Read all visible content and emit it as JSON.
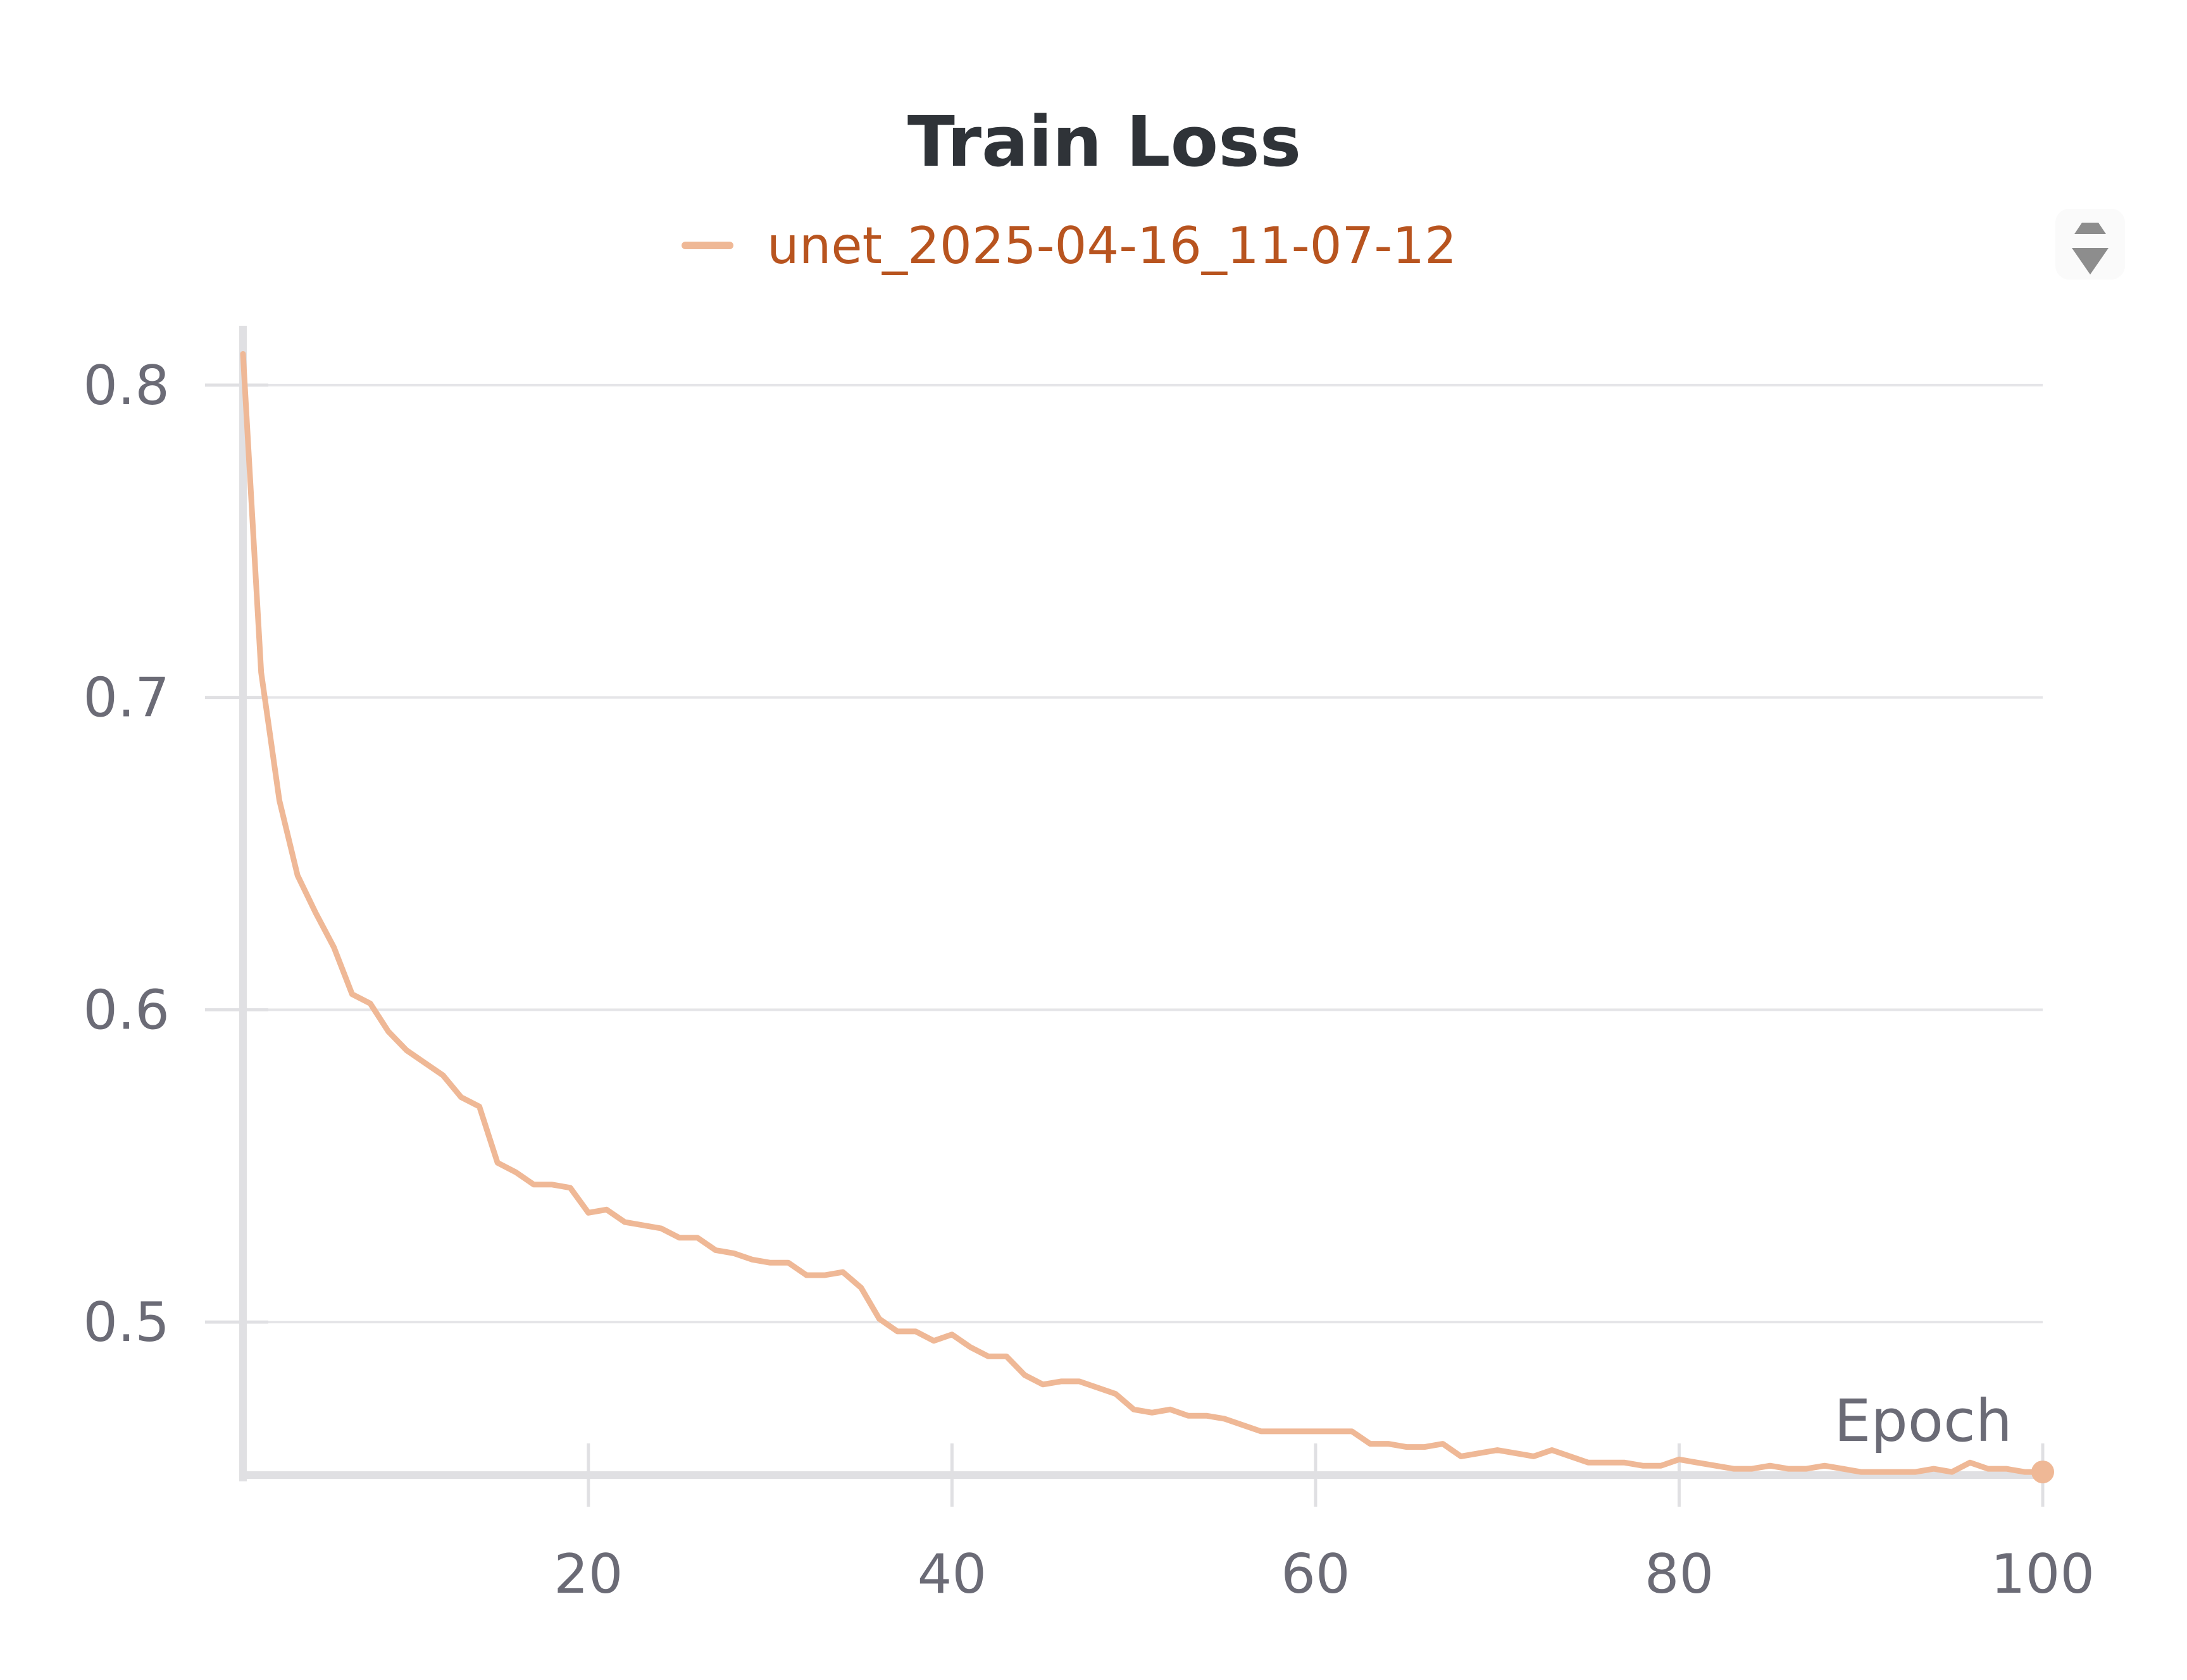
{
  "chart_data": {
    "type": "line",
    "title": "Train Loss",
    "xlabel": "Epoch",
    "ylabel": "",
    "xlim": [
      1,
      100
    ],
    "ylim": [
      0.451,
      0.818
    ],
    "x_ticks": [
      20,
      40,
      60,
      80,
      100
    ],
    "y_ticks": [
      0.5,
      0.6,
      0.7,
      0.8
    ],
    "grid": "horizontal",
    "legend_position": "top-center",
    "series": [
      {
        "name": "unet_2025-04-16_11-07-12",
        "color": "#efb896",
        "label_color": "#b8541f",
        "x": [
          1,
          2,
          3,
          4,
          5,
          6,
          7,
          8,
          9,
          10,
          11,
          12,
          13,
          14,
          15,
          16,
          17,
          18,
          19,
          20,
          21,
          22,
          23,
          24,
          25,
          26,
          27,
          28,
          29,
          30,
          31,
          32,
          33,
          34,
          35,
          36,
          37,
          38,
          39,
          40,
          41,
          42,
          43,
          44,
          45,
          46,
          47,
          48,
          49,
          50,
          51,
          52,
          53,
          54,
          55,
          56,
          57,
          58,
          59,
          60,
          61,
          62,
          63,
          64,
          65,
          66,
          67,
          68,
          69,
          70,
          71,
          72,
          73,
          74,
          75,
          76,
          77,
          78,
          79,
          80,
          81,
          82,
          83,
          84,
          85,
          86,
          87,
          88,
          89,
          90,
          91,
          92,
          93,
          94,
          95,
          96,
          97,
          98,
          99,
          100
        ],
        "values": [
          0.81,
          0.708,
          0.667,
          0.643,
          0.631,
          0.62,
          0.605,
          0.602,
          0.593,
          0.587,
          0.583,
          0.579,
          0.572,
          0.569,
          0.551,
          0.548,
          0.544,
          0.544,
          0.543,
          0.535,
          0.536,
          0.532,
          0.531,
          0.53,
          0.527,
          0.527,
          0.523,
          0.522,
          0.52,
          0.519,
          0.519,
          0.515,
          0.515,
          0.516,
          0.511,
          0.501,
          0.497,
          0.497,
          0.494,
          0.496,
          0.492,
          0.489,
          0.489,
          0.483,
          0.48,
          0.481,
          0.481,
          0.479,
          0.477,
          0.472,
          0.471,
          0.472,
          0.47,
          0.47,
          0.469,
          0.467,
          0.465,
          0.465,
          0.465,
          0.465,
          0.465,
          0.465,
          0.461,
          0.461,
          0.46,
          0.46,
          0.461,
          0.457,
          0.458,
          0.459,
          0.458,
          0.457,
          0.459,
          0.457,
          0.455,
          0.455,
          0.455,
          0.454,
          0.454,
          0.456,
          0.455,
          0.454,
          0.453,
          0.453,
          0.454,
          0.453,
          0.453,
          0.454,
          0.453,
          0.452,
          0.452,
          0.452,
          0.452,
          0.453,
          0.452,
          0.455,
          0.453,
          0.453,
          0.452,
          0.452
        ]
      }
    ]
  },
  "ui": {
    "grip_icon": "drag-handle-icon",
    "grid_color": "#e5e5e8",
    "axis_color": "#e0e0e3"
  }
}
